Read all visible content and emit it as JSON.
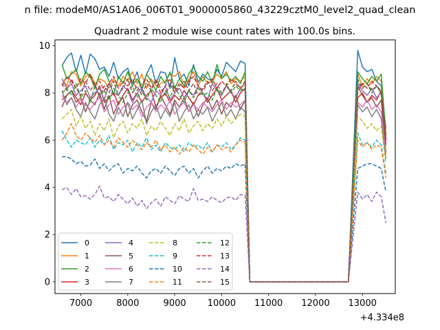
{
  "figure": {
    "suptitle": "n file: modeM0/AS1A06_006T01_9000005860_43229cztM0_level2_quad_clean"
  },
  "chart_data": {
    "type": "line",
    "title": "Quadrant 2 module wise count rates with 100.0s bins.",
    "xlabel": "",
    "ylabel": "",
    "x_offset_label": "+4.334e8",
    "xlim": [
      6450,
      13700
    ],
    "ylim": [
      -0.5,
      10.25
    ],
    "xticks": [
      7000,
      8000,
      9000,
      10000,
      11000,
      12000,
      13000
    ],
    "yticks": [
      0,
      2,
      4,
      6,
      8,
      10
    ],
    "grid": false,
    "legend": {
      "position": "lower-left",
      "columns": 4
    },
    "x": [
      6600,
      6700,
      6800,
      6900,
      7000,
      7100,
      7200,
      7300,
      7400,
      7500,
      7600,
      7700,
      7800,
      7900,
      8000,
      8100,
      8200,
      8300,
      8400,
      8500,
      8600,
      8700,
      8800,
      8900,
      9000,
      9100,
      9200,
      9300,
      9400,
      9500,
      9600,
      9700,
      9800,
      9900,
      10000,
      10100,
      10200,
      10300,
      10400,
      10500,
      10600,
      10800,
      10900,
      11000,
      11100,
      11200,
      11300,
      11400,
      11500,
      11600,
      11700,
      11800,
      11900,
      12000,
      12100,
      12200,
      12300,
      12400,
      12500,
      12600,
      12700,
      12900,
      13000,
      13100,
      13200,
      13300,
      13400,
      13500
    ],
    "series": [
      {
        "name": "0",
        "color": "#1f77b4",
        "style": "solid",
        "values": [
          9.15,
          9.5,
          9.7,
          8.9,
          9.6,
          8.8,
          9.65,
          9.45,
          9.0,
          9.1,
          8.7,
          9.3,
          8.6,
          8.9,
          9.05,
          8.4,
          8.9,
          8.1,
          8.8,
          9.2,
          8.4,
          8.9,
          8.85,
          8.2,
          9.5,
          8.6,
          8.8,
          8.3,
          9.2,
          8.45,
          8.8,
          8.6,
          8.5,
          9.0,
          8.7,
          9.3,
          9.1,
          8.9,
          9.35,
          9.25,
          0.0,
          0.0,
          0.0,
          0.0,
          0.0,
          0.0,
          0.0,
          0.0,
          0.0,
          0.0,
          0.0,
          0.0,
          0.0,
          0.0,
          0.0,
          0.0,
          0.0,
          0.0,
          0.0,
          0.0,
          0.0,
          9.8,
          9.1,
          8.9,
          9.0,
          8.5,
          8.3,
          6.5
        ]
      },
      {
        "name": "1",
        "color": "#ff7f0e",
        "style": "solid",
        "values": [
          8.6,
          8.3,
          8.9,
          8.8,
          8.3,
          8.7,
          8.8,
          8.4,
          8.6,
          8.5,
          8.2,
          8.6,
          8.3,
          8.7,
          8.5,
          8.9,
          8.4,
          8.8,
          8.2,
          8.6,
          8.3,
          8.4,
          8.5,
          8.8,
          8.7,
          8.9,
          8.2,
          8.6,
          8.9,
          8.3,
          8.7,
          8.4,
          8.5,
          8.8,
          8.6,
          8.9,
          8.4,
          8.6,
          8.5,
          8.7,
          0.0,
          0.0,
          0.0,
          0.0,
          0.0,
          0.0,
          0.0,
          0.0,
          0.0,
          0.0,
          0.0,
          0.0,
          0.0,
          0.0,
          0.0,
          0.0,
          0.0,
          0.0,
          0.0,
          0.0,
          0.0,
          8.8,
          8.3,
          8.6,
          8.4,
          8.7,
          8.5,
          6.3
        ]
      },
      {
        "name": "2",
        "color": "#2ca02c",
        "style": "solid",
        "values": [
          9.2,
          8.6,
          8.8,
          9.0,
          8.4,
          8.9,
          8.7,
          8.2,
          8.8,
          9.0,
          8.5,
          7.9,
          8.7,
          8.4,
          8.9,
          8.3,
          8.6,
          8.2,
          8.8,
          8.5,
          8.1,
          8.7,
          8.4,
          8.9,
          8.2,
          8.6,
          8.3,
          8.8,
          9.1,
          8.7,
          8.5,
          8.9,
          8.4,
          9.2,
          8.6,
          8.8,
          8.5,
          8.7,
          8.4,
          8.9,
          0.0,
          0.0,
          0.0,
          0.0,
          0.0,
          0.0,
          0.0,
          0.0,
          0.0,
          0.0,
          0.0,
          0.0,
          0.0,
          0.0,
          0.0,
          0.0,
          0.0,
          0.0,
          0.0,
          0.0,
          0.0,
          8.9,
          8.6,
          8.4,
          8.7,
          8.5,
          8.8,
          6.2
        ]
      },
      {
        "name": "3",
        "color": "#d62728",
        "style": "solid",
        "values": [
          7.7,
          7.9,
          8.1,
          7.8,
          7.5,
          8.0,
          7.7,
          7.9,
          8.3,
          7.6,
          7.8,
          8.0,
          7.5,
          7.9,
          8.2,
          7.7,
          8.0,
          7.6,
          7.9,
          8.1,
          7.4,
          7.8,
          8.0,
          7.6,
          7.9,
          7.7,
          8.1,
          7.8,
          7.5,
          7.9,
          8.0,
          7.6,
          7.9,
          8.2,
          7.7,
          7.9,
          8.1,
          7.6,
          8.0,
          8.2,
          0.0,
          0.0,
          0.0,
          0.0,
          0.0,
          0.0,
          0.0,
          0.0,
          0.0,
          0.0,
          0.0,
          0.0,
          0.0,
          0.0,
          0.0,
          0.0,
          0.0,
          0.0,
          0.0,
          0.0,
          0.0,
          7.8,
          8.0,
          7.6,
          7.9,
          7.7,
          8.1,
          5.8
        ]
      },
      {
        "name": "4",
        "color": "#9467bd",
        "style": "solid",
        "values": [
          8.6,
          8.2,
          8.4,
          7.9,
          8.1,
          8.3,
          7.8,
          8.0,
          8.2,
          7.7,
          8.4,
          8.0,
          7.9,
          8.3,
          8.1,
          7.6,
          8.0,
          8.2,
          7.8,
          7.6,
          8.1,
          7.9,
          8.3,
          7.7,
          8.0,
          8.2,
          7.8,
          8.1,
          7.9,
          8.3,
          8.0,
          7.7,
          8.4,
          8.1,
          7.9,
          8.3,
          8.0,
          7.8,
          8.2,
          8.1,
          0.0,
          0.0,
          0.0,
          0.0,
          0.0,
          0.0,
          0.0,
          0.0,
          0.0,
          0.0,
          0.0,
          0.0,
          0.0,
          0.0,
          0.0,
          0.0,
          0.0,
          0.0,
          0.0,
          0.0,
          0.0,
          8.4,
          8.1,
          7.9,
          8.2,
          7.8,
          8.0,
          6.0
        ]
      },
      {
        "name": "5",
        "color": "#8c564b",
        "style": "solid",
        "values": [
          7.4,
          7.9,
          8.1,
          7.6,
          7.8,
          7.2,
          7.7,
          7.5,
          8.0,
          7.3,
          7.9,
          7.1,
          7.6,
          7.8,
          7.0,
          7.5,
          7.7,
          7.2,
          6.8,
          7.6,
          7.3,
          7.9,
          7.5,
          7.1,
          7.7,
          7.4,
          7.8,
          7.2,
          7.6,
          7.0,
          7.5,
          7.8,
          7.3,
          7.7,
          7.1,
          7.6,
          7.4,
          7.9,
          7.3,
          7.7,
          0.0,
          0.0,
          0.0,
          0.0,
          0.0,
          0.0,
          0.0,
          0.0,
          0.0,
          0.0,
          0.0,
          0.0,
          0.0,
          0.0,
          0.0,
          0.0,
          0.0,
          0.0,
          0.0,
          0.0,
          0.0,
          8.3,
          7.9,
          7.6,
          7.8,
          7.4,
          7.7,
          5.5
        ]
      },
      {
        "name": "6",
        "color": "#e377c2",
        "style": "solid",
        "values": [
          7.9,
          7.6,
          7.8,
          7.4,
          7.7,
          7.5,
          7.3,
          7.6,
          7.8,
          7.2,
          7.5,
          7.7,
          7.1,
          7.4,
          7.6,
          7.3,
          7.5,
          7.0,
          7.4,
          7.6,
          7.2,
          7.5,
          7.3,
          7.7,
          7.1,
          7.4,
          7.6,
          7.2,
          7.5,
          7.3,
          7.6,
          7.4,
          7.2,
          7.5,
          7.7,
          7.3,
          7.6,
          7.4,
          7.5,
          7.7,
          0.0,
          0.0,
          0.0,
          0.0,
          0.0,
          0.0,
          0.0,
          0.0,
          0.0,
          0.0,
          0.0,
          0.0,
          0.0,
          0.0,
          0.0,
          0.0,
          0.0,
          0.0,
          0.0,
          0.0,
          0.0,
          7.6,
          7.4,
          7.7,
          7.3,
          7.5,
          7.2,
          5.4
        ]
      },
      {
        "name": "7",
        "color": "#7f7f7f",
        "style": "solid",
        "values": [
          8.1,
          7.5,
          7.8,
          7.3,
          7.0,
          7.6,
          7.2,
          6.9,
          7.5,
          7.8,
          7.1,
          6.8,
          7.4,
          7.0,
          7.6,
          6.9,
          7.3,
          7.7,
          6.7,
          7.2,
          7.5,
          6.9,
          7.3,
          7.0,
          7.6,
          6.8,
          7.2,
          7.5,
          6.9,
          7.3,
          7.1,
          7.4,
          6.8,
          7.2,
          7.6,
          7.0,
          7.3,
          6.9,
          7.4,
          7.2,
          0.0,
          0.0,
          0.0,
          0.0,
          0.0,
          0.0,
          0.0,
          0.0,
          0.0,
          0.0,
          0.0,
          0.0,
          0.0,
          0.0,
          0.0,
          0.0,
          0.0,
          0.0,
          0.0,
          0.0,
          0.0,
          7.5,
          7.2,
          7.4,
          7.0,
          7.3,
          6.9,
          5.2
        ]
      },
      {
        "name": "8",
        "color": "#bcbd22",
        "style": "dashed",
        "values": [
          6.9,
          7.1,
          7.3,
          6.6,
          7.0,
          6.5,
          6.8,
          6.2,
          6.7,
          6.4,
          6.9,
          6.1,
          6.6,
          6.8,
          6.3,
          6.7,
          6.5,
          6.9,
          6.2,
          6.6,
          6.4,
          6.8,
          6.5,
          6.2,
          6.7,
          6.4,
          6.9,
          6.3,
          6.6,
          6.8,
          6.4,
          6.7,
          6.5,
          6.9,
          6.6,
          7.0,
          6.7,
          6.9,
          7.1,
          7.0,
          0.0,
          0.0,
          0.0,
          0.0,
          0.0,
          0.0,
          0.0,
          0.0,
          0.0,
          0.0,
          0.0,
          0.0,
          0.0,
          0.0,
          0.0,
          0.0,
          0.0,
          0.0,
          0.0,
          0.0,
          0.0,
          7.0,
          6.8,
          6.5,
          6.7,
          6.4,
          6.6,
          5.0
        ]
      },
      {
        "name": "9",
        "color": "#17becf",
        "style": "dashed",
        "values": [
          6.4,
          6.0,
          5.7,
          6.0,
          5.9,
          5.8,
          6.1,
          5.7,
          6.0,
          5.8,
          6.2,
          5.6,
          5.9,
          5.8,
          6.0,
          5.5,
          5.9,
          5.7,
          6.1,
          5.6,
          5.8,
          5.5,
          5.9,
          5.7,
          5.6,
          5.8,
          5.5,
          5.9,
          5.7,
          5.8,
          5.6,
          5.9,
          5.5,
          5.8,
          5.7,
          5.9,
          5.6,
          5.8,
          6.1,
          6.0,
          0.0,
          0.0,
          0.0,
          0.0,
          0.0,
          0.0,
          0.0,
          0.0,
          0.0,
          0.0,
          0.0,
          0.0,
          0.0,
          0.0,
          0.0,
          0.0,
          0.0,
          0.0,
          0.0,
          0.0,
          0.0,
          6.3,
          5.8,
          5.9,
          5.7,
          6.0,
          5.8,
          4.6
        ]
      },
      {
        "name": "10",
        "color": "#1f77b4",
        "style": "dashed",
        "values": [
          5.3,
          5.3,
          5.2,
          5.0,
          5.1,
          4.9,
          4.95,
          5.2,
          4.8,
          5.0,
          4.7,
          4.9,
          5.0,
          4.6,
          4.8,
          4.7,
          4.9,
          4.6,
          4.4,
          4.7,
          4.8,
          4.6,
          4.9,
          4.7,
          4.5,
          4.8,
          4.9,
          4.6,
          4.8,
          4.4,
          4.7,
          4.9,
          4.6,
          4.8,
          4.7,
          4.9,
          4.8,
          5.0,
          4.9,
          5.0,
          0.0,
          0.0,
          0.0,
          0.0,
          0.0,
          0.0,
          0.0,
          0.0,
          0.0,
          0.0,
          0.0,
          0.0,
          0.0,
          0.0,
          0.0,
          0.0,
          0.0,
          0.0,
          0.0,
          0.0,
          0.0,
          4.8,
          4.9,
          5.0,
          5.0,
          4.9,
          4.8,
          3.8
        ]
      },
      {
        "name": "11",
        "color": "#ff7f0e",
        "style": "dashed",
        "values": [
          6.0,
          6.3,
          6.7,
          6.2,
          6.0,
          6.3,
          6.1,
          5.9,
          6.2,
          5.8,
          6.0,
          5.7,
          6.1,
          5.9,
          5.7,
          6.0,
          5.8,
          5.6,
          5.9,
          5.7,
          6.0,
          5.6,
          5.8,
          5.5,
          5.7,
          5.4,
          5.7,
          5.5,
          5.8,
          5.6,
          5.4,
          5.7,
          5.5,
          5.8,
          5.6,
          5.7,
          5.5,
          5.8,
          6.0,
          5.9,
          0.0,
          0.0,
          0.0,
          0.0,
          0.0,
          0.0,
          0.0,
          0.0,
          0.0,
          0.0,
          0.0,
          0.0,
          0.0,
          0.0,
          0.0,
          0.0,
          0.0,
          0.0,
          0.0,
          0.0,
          0.0,
          6.0,
          5.7,
          5.9,
          5.6,
          5.8,
          5.7,
          4.4
        ]
      },
      {
        "name": "12",
        "color": "#2ca02c",
        "style": "dashed",
        "values": [
          8.0,
          8.2,
          7.9,
          8.4,
          7.8,
          8.1,
          7.6,
          8.3,
          7.9,
          8.1,
          7.7,
          8.2,
          7.9,
          7.6,
          8.0,
          8.3,
          7.8,
          8.1,
          7.7,
          8.2,
          7.9,
          7.6,
          8.1,
          7.8,
          8.3,
          7.9,
          7.6,
          8.1,
          7.8,
          8.2,
          7.9,
          8.0,
          7.7,
          8.2,
          7.9,
          8.4,
          8.0,
          8.3,
          8.1,
          8.2,
          0.0,
          0.0,
          0.0,
          0.0,
          0.0,
          0.0,
          0.0,
          0.0,
          0.0,
          0.0,
          0.0,
          0.0,
          0.0,
          0.0,
          0.0,
          0.0,
          0.0,
          0.0,
          0.0,
          0.0,
          0.0,
          8.6,
          8.2,
          8.4,
          8.0,
          8.3,
          8.1,
          6.1
        ]
      },
      {
        "name": "13",
        "color": "#d62728",
        "style": "dashed",
        "values": [
          8.3,
          8.7,
          8.5,
          8.2,
          8.6,
          8.4,
          8.8,
          8.3,
          8.5,
          8.1,
          8.4,
          8.7,
          8.2,
          8.5,
          8.3,
          8.6,
          8.1,
          8.4,
          8.6,
          8.2,
          8.5,
          8.0,
          8.3,
          8.6,
          8.1,
          8.4,
          8.2,
          8.5,
          8.7,
          8.3,
          8.1,
          8.4,
          8.6,
          8.2,
          8.5,
          8.3,
          8.6,
          8.4,
          8.2,
          8.5,
          0.0,
          0.0,
          0.0,
          0.0,
          0.0,
          0.0,
          0.0,
          0.0,
          0.0,
          0.0,
          0.0,
          0.0,
          0.0,
          0.0,
          0.0,
          0.0,
          0.0,
          0.0,
          0.0,
          0.0,
          0.0,
          8.1,
          8.4,
          8.2,
          8.5,
          8.3,
          8.0,
          6.0
        ]
      },
      {
        "name": "14",
        "color": "#9467bd",
        "style": "dashed",
        "values": [
          3.9,
          4.0,
          3.7,
          3.95,
          3.6,
          3.65,
          3.5,
          3.7,
          4.05,
          3.55,
          3.6,
          3.4,
          3.7,
          3.5,
          3.3,
          3.55,
          3.2,
          3.45,
          3.1,
          3.35,
          3.5,
          3.2,
          3.6,
          3.45,
          3.3,
          3.65,
          3.5,
          3.4,
          3.95,
          3.45,
          3.5,
          3.4,
          3.6,
          3.45,
          3.35,
          3.55,
          3.6,
          3.45,
          3.7,
          3.65,
          0.0,
          0.0,
          0.0,
          0.0,
          0.0,
          0.0,
          0.0,
          0.0,
          0.0,
          0.0,
          0.0,
          0.0,
          0.0,
          0.0,
          0.0,
          0.0,
          0.0,
          0.0,
          0.0,
          0.0,
          0.0,
          3.8,
          3.5,
          3.7,
          3.4,
          3.8,
          3.6,
          2.5
        ]
      },
      {
        "name": "15",
        "color": "#8c564b",
        "style": "dashed",
        "values": [
          8.4,
          8.1,
          8.6,
          8.2,
          7.9,
          8.5,
          8.1,
          8.4,
          7.8,
          8.3,
          8.0,
          8.5,
          7.9,
          8.2,
          8.6,
          8.0,
          8.3,
          7.9,
          8.4,
          8.1,
          8.6,
          8.2,
          7.9,
          8.4,
          8.0,
          8.3,
          8.5,
          8.1,
          8.4,
          7.9,
          8.2,
          8.5,
          8.1,
          8.4,
          8.0,
          8.3,
          8.1,
          8.5,
          8.2,
          8.4,
          0.0,
          0.0,
          0.0,
          0.0,
          0.0,
          0.0,
          0.0,
          0.0,
          0.0,
          0.0,
          0.0,
          0.0,
          0.0,
          0.0,
          0.0,
          0.0,
          0.0,
          0.0,
          0.0,
          0.0,
          0.0,
          8.5,
          8.2,
          8.4,
          8.1,
          8.3,
          8.0,
          6.2
        ]
      }
    ]
  }
}
